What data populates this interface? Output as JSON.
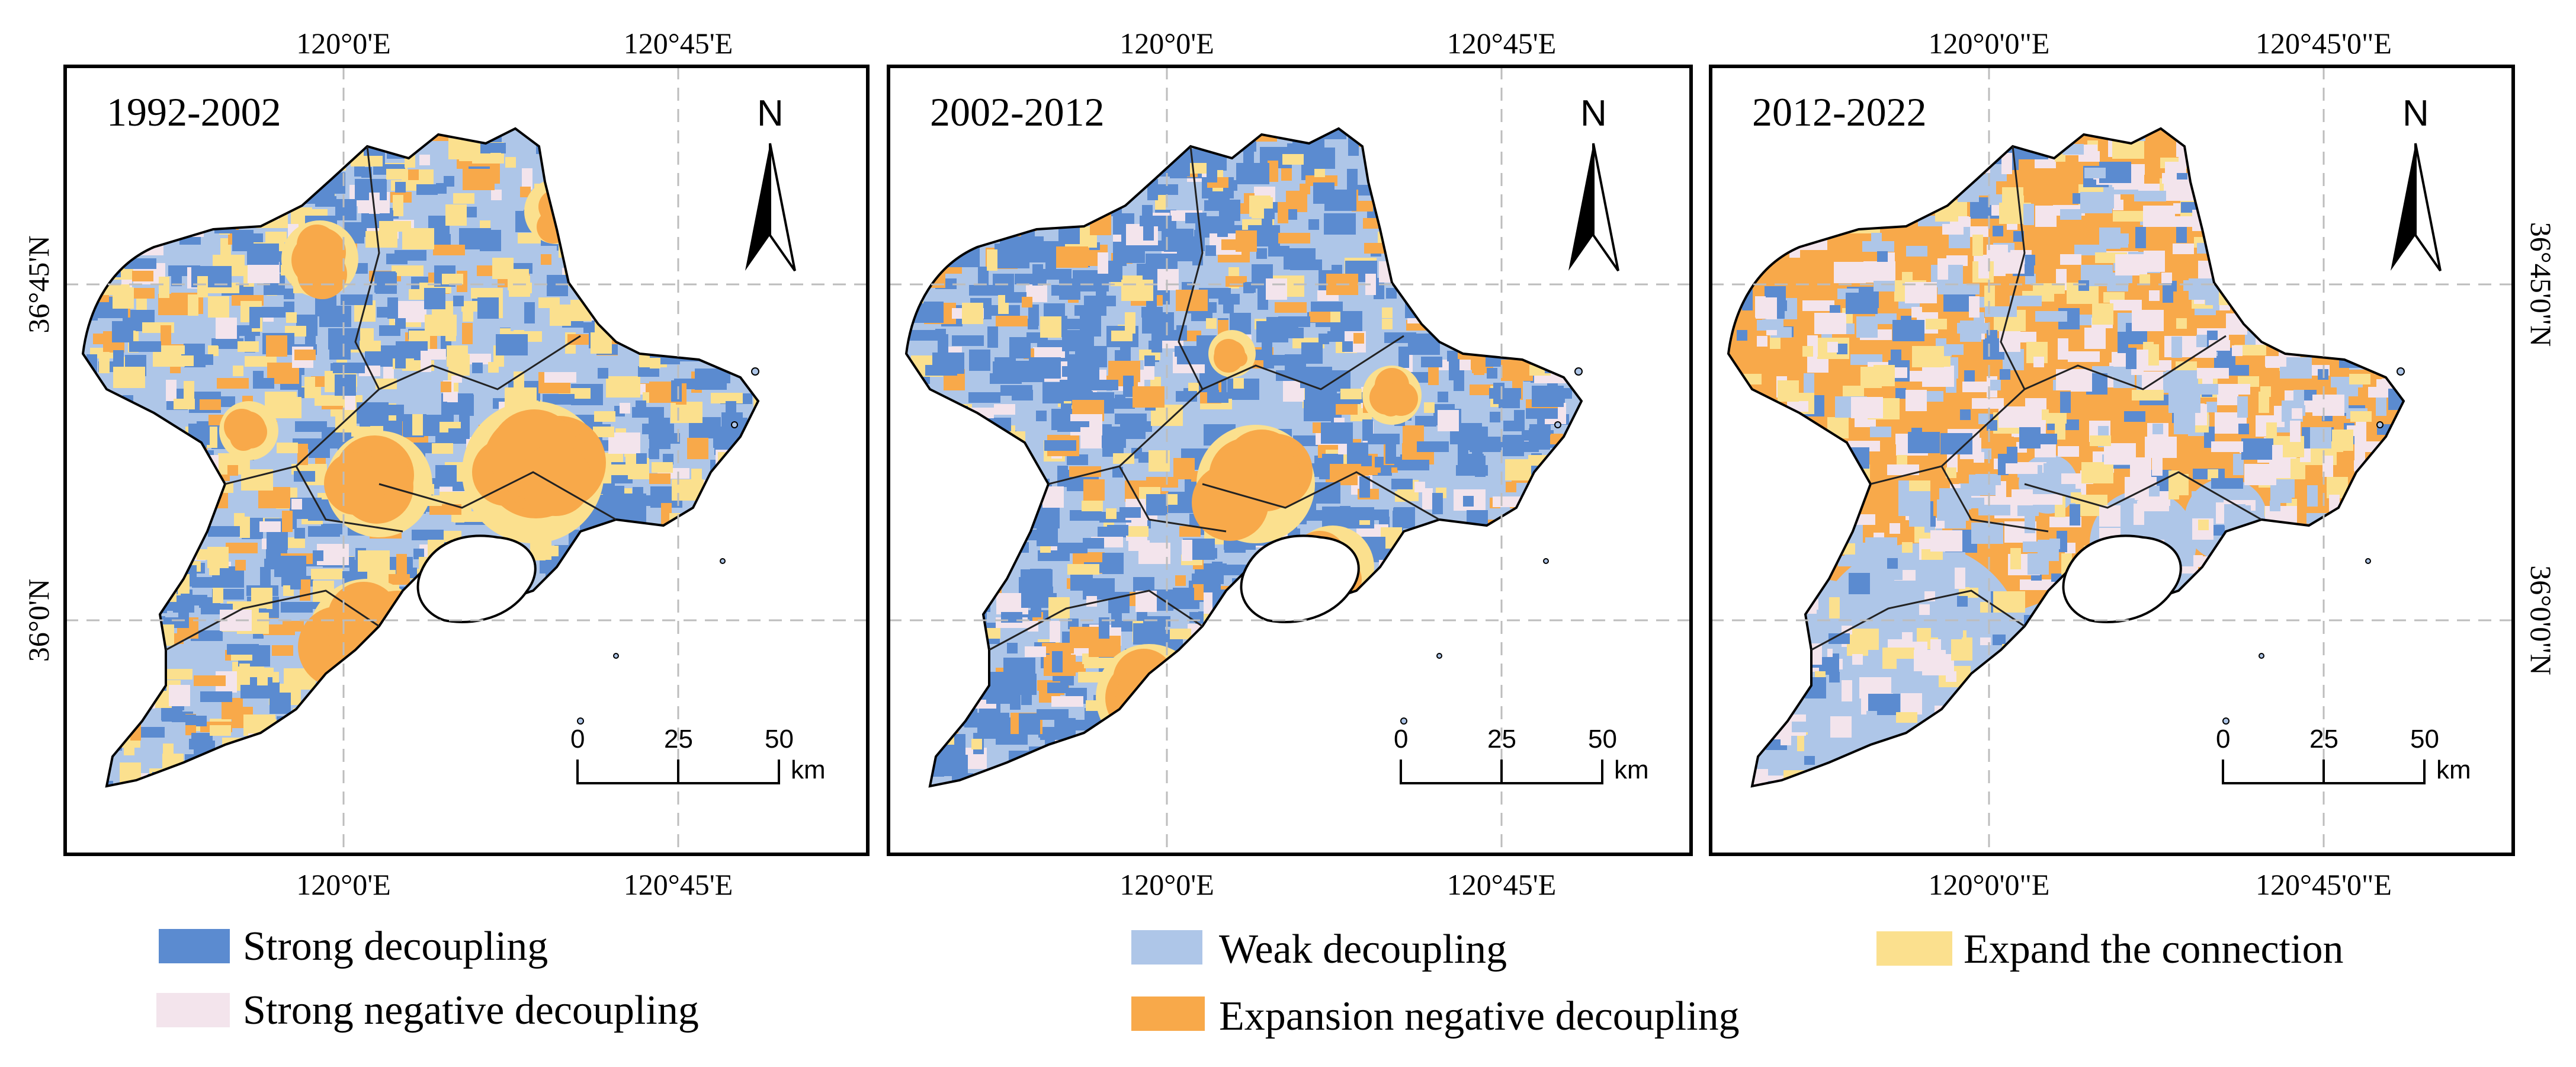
{
  "colors": {
    "strong_decoupling": "#5b8bd0",
    "weak_decoupling": "#aec6e8",
    "expand_connection": "#fbe08e",
    "strong_negative": "#f3e4ec",
    "expansion_negative": "#f8a94a",
    "outline": "#000000"
  },
  "panels": [
    {
      "period": "1992-2002",
      "top_labels": [
        "120°0'E",
        "120°45'E"
      ],
      "bottom_labels": [
        "120°0'E",
        "120°45'E"
      ],
      "left_labels": [
        "36°45'N",
        "36°0'N"
      ],
      "right_labels": [],
      "dominant": "weak"
    },
    {
      "period": "2002-2012",
      "top_labels": [
        "120°0'E",
        "120°45'E"
      ],
      "bottom_labels": [
        "120°0'E",
        "120°45'E"
      ],
      "left_labels": [],
      "right_labels": [],
      "dominant": "weak"
    },
    {
      "period": "2012-2022",
      "top_labels": [
        "120°0'0\"E",
        "120°45'0\"E"
      ],
      "bottom_labels": [
        "120°0'0\"E",
        "120°45'0\"E"
      ],
      "left_labels": [],
      "right_labels": [
        "36°45'0\"N",
        "36°0'0\"N"
      ],
      "dominant": "expansion"
    }
  ],
  "north_label": "N",
  "scale": {
    "ticks": [
      "0",
      "25",
      "50"
    ],
    "unit": "km"
  },
  "legend": [
    {
      "label": "Strong decoupling",
      "color_key": "strong_decoupling"
    },
    {
      "label": "Weak decoupling",
      "color_key": "weak_decoupling"
    },
    {
      "label": "Expand the connection",
      "color_key": "expand_connection"
    },
    {
      "label": "Strong negative decoupling",
      "color_key": "strong_negative"
    },
    {
      "label": "Expansion negative decoupling",
      "color_key": "expansion_negative"
    }
  ]
}
